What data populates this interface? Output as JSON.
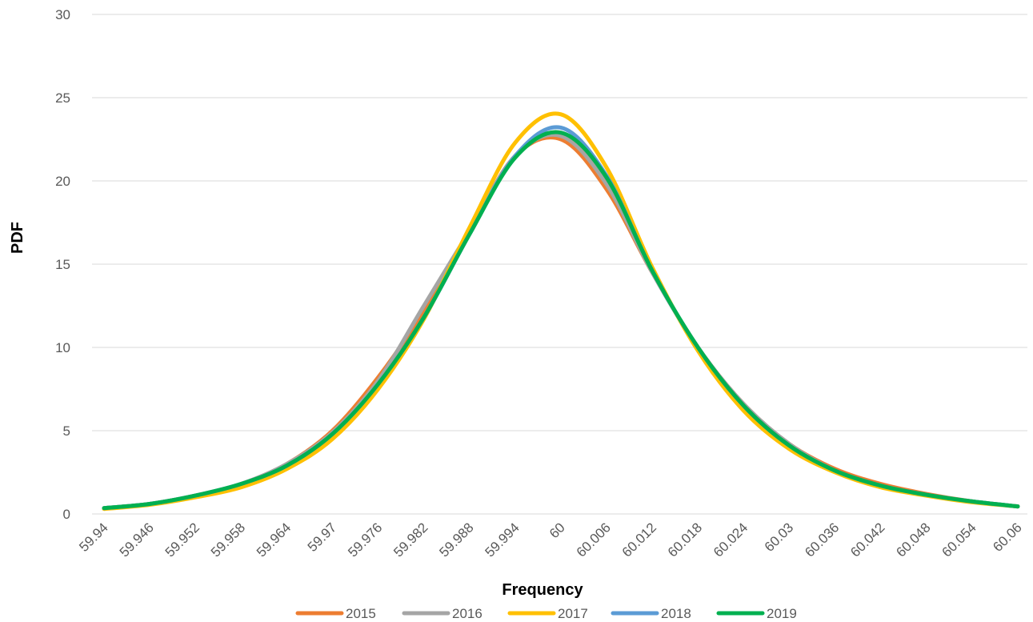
{
  "chart_data": {
    "type": "line",
    "title": "",
    "xlabel": "Frequency",
    "ylabel": "PDF",
    "ylim": [
      0,
      30
    ],
    "yticks": [
      0,
      5,
      10,
      15,
      20,
      25,
      30
    ],
    "xlim": [
      59.94,
      60.06
    ],
    "x_tick_labels": [
      "59.94",
      "59.946",
      "59.952",
      "59.958",
      "59.964",
      "59.97",
      "59.976",
      "59.982",
      "59.988",
      "59.994",
      "60",
      "60.006",
      "60.012",
      "60.018",
      "60.024",
      "60.03",
      "60.036",
      "60.042",
      "60.048",
      "60.054",
      "60.06"
    ],
    "grid": "horizontal",
    "legend": "bottom",
    "x": [
      59.94,
      59.946,
      59.952,
      59.958,
      59.964,
      59.97,
      59.976,
      59.982,
      59.988,
      59.994,
      60,
      60.006,
      60.012,
      60.018,
      60.024,
      60.03,
      60.036,
      60.042,
      60.048,
      60.054,
      60.06
    ],
    "series": [
      {
        "name": "2015",
        "color": "#ED7D31",
        "values": [
          0.35,
          0.6,
          1.1,
          1.8,
          3.0,
          5.0,
          8.2,
          12.2,
          17.0,
          21.5,
          22.5,
          19.5,
          14.5,
          10.0,
          6.6,
          4.2,
          2.7,
          1.8,
          1.2,
          0.75,
          0.45
        ]
      },
      {
        "name": "2016",
        "color": "#A5A5A5",
        "values": [
          0.35,
          0.6,
          1.1,
          1.8,
          3.0,
          4.9,
          8.0,
          12.5,
          17.0,
          21.5,
          22.7,
          19.8,
          14.5,
          10.0,
          6.6,
          4.2,
          2.6,
          1.7,
          1.15,
          0.75,
          0.45
        ]
      },
      {
        "name": "2017",
        "color": "#FFC000",
        "values": [
          0.3,
          0.55,
          1.0,
          1.6,
          2.7,
          4.5,
          7.5,
          11.7,
          17.2,
          22.3,
          24.0,
          20.8,
          14.8,
          9.8,
          6.2,
          3.9,
          2.5,
          1.6,
          1.1,
          0.7,
          0.45
        ]
      },
      {
        "name": "2018",
        "color": "#5B9BD5",
        "values": [
          0.35,
          0.6,
          1.1,
          1.8,
          2.9,
          4.8,
          7.8,
          11.8,
          16.8,
          21.5,
          23.2,
          20.3,
          14.6,
          10.0,
          6.5,
          4.1,
          2.6,
          1.7,
          1.15,
          0.75,
          0.45
        ]
      },
      {
        "name": "2019",
        "color": "#00B050",
        "values": [
          0.35,
          0.6,
          1.1,
          1.8,
          2.9,
          4.8,
          7.8,
          11.8,
          16.8,
          21.4,
          22.9,
          20.2,
          14.6,
          10.0,
          6.5,
          4.1,
          2.6,
          1.7,
          1.15,
          0.75,
          0.45
        ]
      }
    ]
  }
}
